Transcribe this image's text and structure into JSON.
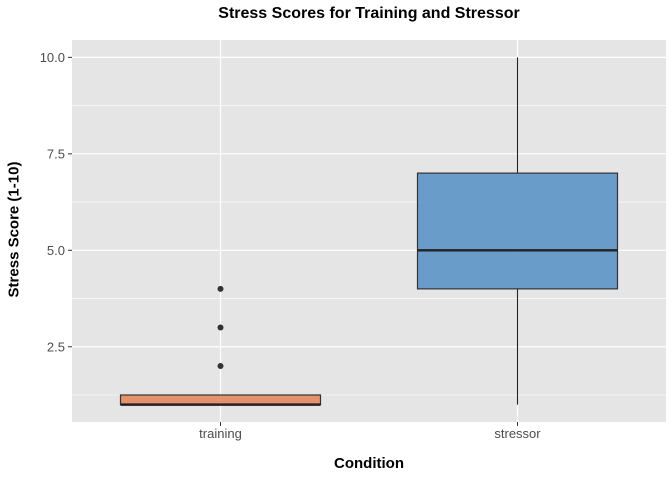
{
  "chart_data": {
    "type": "box",
    "title": "Stress Scores for Training and Stressor",
    "xlabel": "Condition",
    "ylabel": "Stress Score (1-10)",
    "categories": [
      "training",
      "stressor"
    ],
    "ylim": [
      0.55,
      10.45
    ],
    "yticks": [
      2.5,
      5.0,
      7.5,
      10.0
    ],
    "ytick_labels": [
      "2.5",
      "5.0",
      "7.5",
      "10.0"
    ],
    "grid": true,
    "legend": "none",
    "boxes": [
      {
        "category": "training",
        "min": 1,
        "q1": 1,
        "median": 1,
        "q3": 1.25,
        "max": 1.25,
        "outliers": [
          2,
          3,
          4
        ],
        "color": "#e3875e"
      },
      {
        "category": "stressor",
        "min": 1,
        "q1": 4,
        "median": 5,
        "q3": 7,
        "max": 10,
        "outliers": [],
        "color": "#5b94c4"
      }
    ]
  },
  "colors": {
    "panel": "#e5e5e5",
    "grid": "#ffffff",
    "tick_text": "#4d4d4d"
  }
}
